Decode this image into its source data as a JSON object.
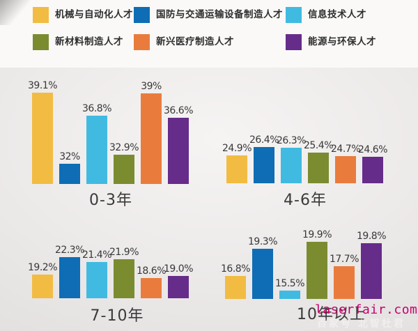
{
  "page": {
    "background": "#ece9e9",
    "legend_background": "#faf9f8"
  },
  "legend": {
    "items": [
      {
        "label": "机械与自动化人才",
        "color": "#F2BC43"
      },
      {
        "label": "国防与交通运输设备制造人才",
        "color": "#0E6DB4"
      },
      {
        "label": "信息技术人才",
        "color": "#41BAE2"
      },
      {
        "label": "新材料制造人才",
        "color": "#7B8C30"
      },
      {
        "label": "新兴医疗制造人才",
        "color": "#E97C3D"
      },
      {
        "label": "能源与环保人才",
        "color": "#662C8A"
      }
    ]
  },
  "chart_data": {
    "type": "bar",
    "unit": "%",
    "legend_position": "top",
    "grid": false,
    "series_names": [
      "机械与自动化人才",
      "国防与交通运输设备制造人才",
      "信息技术人才",
      "新材料制造人才",
      "新兴医疗制造人才",
      "能源与环保人才"
    ],
    "colors": [
      "#F2BC43",
      "#0E6DB4",
      "#41BAE2",
      "#7B8C30",
      "#E97C3D",
      "#662C8A"
    ],
    "groups": [
      {
        "label": "0-3年",
        "values": [
          39.1,
          32,
          36.8,
          32.9,
          39,
          36.6
        ],
        "display": [
          "39.1%",
          "32%",
          "36.8%",
          "32.9%",
          "39%",
          "36.6%"
        ],
        "scale": {
          "vmin": 32,
          "hmin": 29,
          "vmax": 39.1,
          "hmax": 131
        }
      },
      {
        "label": "4-6年",
        "values": [
          24.9,
          26.4,
          26.3,
          25.4,
          24.7,
          24.6
        ],
        "display": [
          "24.9%",
          "26.4%",
          "26.3%",
          "25.4%",
          "24.7%",
          "24.6%"
        ],
        "scale": {
          "vmin": 24.6,
          "hmin": 38,
          "vmax": 26.4,
          "hmax": 52
        }
      },
      {
        "label": "7-10年",
        "values": [
          19.2,
          22.3,
          21.4,
          21.9,
          18.6,
          19.0
        ],
        "display": [
          "19.2%",
          "22.3%",
          "21.4%",
          "21.9%",
          "18.6%",
          "19.0%"
        ],
        "scale": {
          "vmin": 18.6,
          "hmin": 29,
          "vmax": 22.3,
          "hmax": 59
        }
      },
      {
        "label": "10年以上",
        "values": [
          16.8,
          19.3,
          15.5,
          19.9,
          17.7,
          19.8
        ],
        "display": [
          "16.8%",
          "19.3%",
          "15.5%",
          "19.9%",
          "17.7%",
          "19.8%"
        ],
        "scale": {
          "vmin": 15.5,
          "hmin": 12,
          "vmax": 19.9,
          "hmax": 82
        }
      }
    ]
  },
  "watermark": {
    "text": "laserfair.com",
    "color": "#c2026c"
  },
  "watermark_faint": {
    "text": "百家号 北智杜君"
  }
}
